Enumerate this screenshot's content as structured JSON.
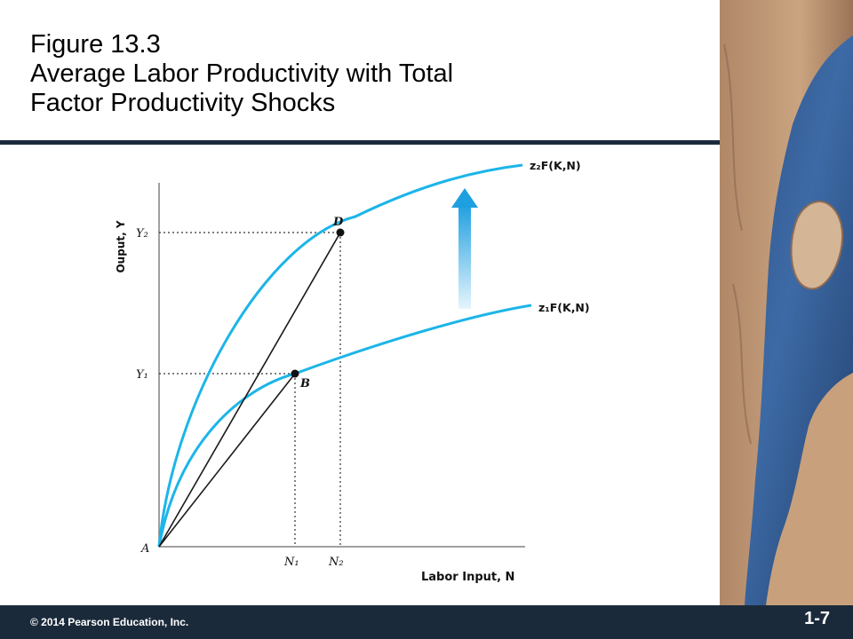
{
  "slide": {
    "title_line1": "Figure 13.3",
    "title_line2": "Average Labor Productivity with Total",
    "title_line3": "Factor Productivity Shocks",
    "copyright": "© 2014 Pearson Education, Inc.",
    "slide_number": "1-7"
  },
  "diagram": {
    "y_axis_label": "Ouput, Y",
    "x_axis_label": "Labor Input, N",
    "origin_label": "A",
    "curve_upper_label": "z₂F(K,N)",
    "curve_lower_label": "z₁F(K,N)",
    "point_d_label": "D",
    "point_b_label": "B",
    "y_tick_upper": "Y₂",
    "y_tick_lower": "Y₁",
    "x_tick_first": "N₁",
    "x_tick_second": "N₂",
    "curve_color": "#1cb5e8",
    "arrow_color": "#1e9fe0"
  }
}
